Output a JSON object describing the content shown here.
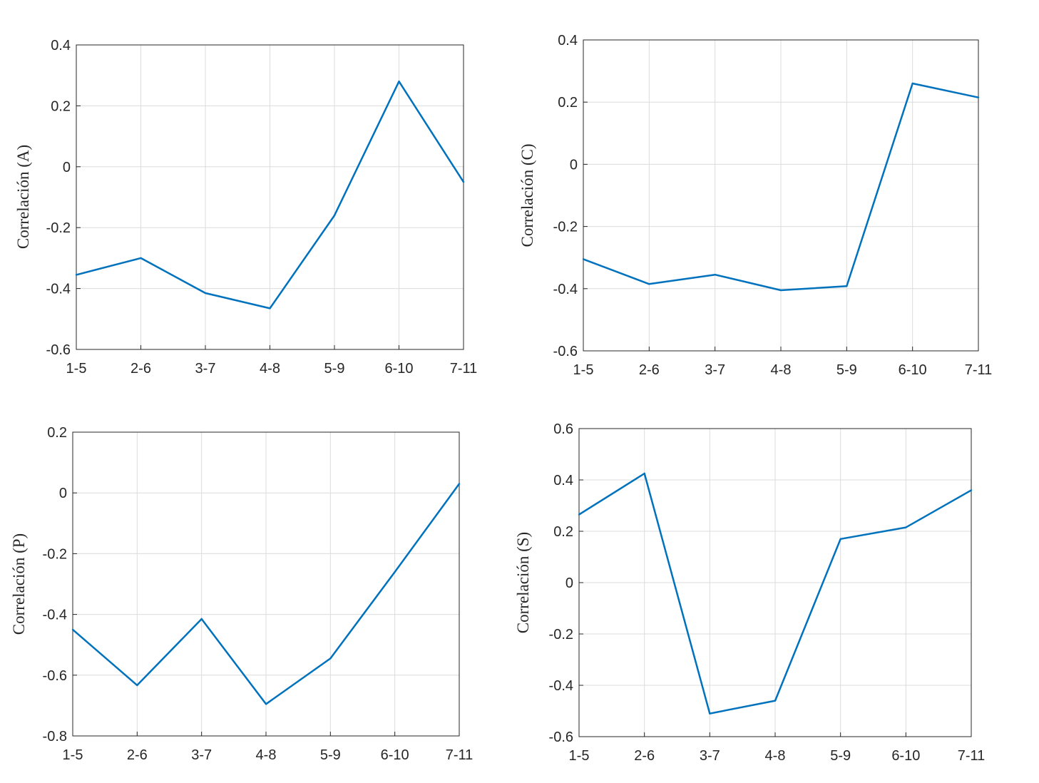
{
  "colors": {
    "series": "#0072BD",
    "axis": "#262626",
    "grid": "#dcdcdc"
  },
  "chart_data": [
    {
      "type": "line",
      "categories": [
        "1-5",
        "2-6",
        "3-7",
        "4-8",
        "5-9",
        "6-10",
        "7-11"
      ],
      "ylabel": "Correlación (A)",
      "ylim": [
        -0.6,
        0.4
      ],
      "yticks": [
        -0.6,
        -0.4,
        -0.2,
        0,
        0.2,
        0.4
      ],
      "ytick_labels": [
        "-0.6",
        "-0.4",
        "-0.2",
        "0",
        "0.2",
        "0.4"
      ],
      "grid": true,
      "series": [
        {
          "values": [
            -0.355,
            -0.3,
            -0.415,
            -0.465,
            -0.16,
            0.28,
            -0.05
          ]
        }
      ]
    },
    {
      "type": "line",
      "categories": [
        "1-5",
        "2-6",
        "3-7",
        "4-8",
        "5-9",
        "6-10",
        "7-11"
      ],
      "ylabel": "Correlación (C)",
      "ylim": [
        -0.6,
        0.4
      ],
      "yticks": [
        -0.6,
        -0.4,
        -0.2,
        0,
        0.2,
        0.4
      ],
      "ytick_labels": [
        "-0.6",
        "-0.4",
        "-0.2",
        "0",
        "0.2",
        "0.4"
      ],
      "grid": true,
      "series": [
        {
          "values": [
            -0.305,
            -0.385,
            -0.355,
            -0.405,
            -0.392,
            0.26,
            0.215
          ]
        }
      ]
    },
    {
      "type": "line",
      "categories": [
        "1-5",
        "2-6",
        "3-7",
        "4-8",
        "5-9",
        "6-10",
        "7-11"
      ],
      "ylabel": "Correlación (P)",
      "ylim": [
        -0.8,
        0.2
      ],
      "yticks": [
        -0.8,
        -0.6,
        -0.4,
        -0.2,
        0,
        0.2
      ],
      "ytick_labels": [
        "-0.8",
        "-0.6",
        "-0.4",
        "-0.2",
        "0",
        "0.2"
      ],
      "grid": true,
      "series": [
        {
          "values": [
            -0.45,
            -0.633,
            -0.415,
            -0.695,
            -0.545,
            -0.26,
            0.03
          ]
        }
      ]
    },
    {
      "type": "line",
      "categories": [
        "1-5",
        "2-6",
        "3-7",
        "4-8",
        "5-9",
        "6-10",
        "7-11"
      ],
      "ylabel": "Correlación (S)",
      "ylim": [
        -0.6,
        0.6
      ],
      "yticks": [
        -0.6,
        -0.4,
        -0.2,
        0,
        0.2,
        0.4,
        0.6
      ],
      "ytick_labels": [
        "-0.6",
        "-0.4",
        "-0.2",
        "0",
        "0.2",
        "0.4",
        "0.6"
      ],
      "grid": true,
      "series": [
        {
          "values": [
            0.265,
            0.425,
            -0.51,
            -0.46,
            0.17,
            0.215,
            0.36
          ]
        }
      ]
    }
  ]
}
